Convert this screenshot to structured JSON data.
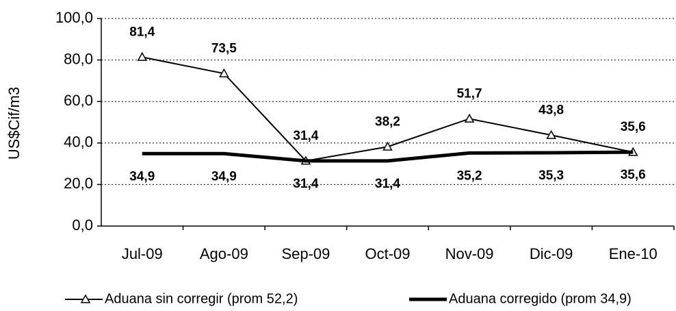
{
  "chart_data": {
    "type": "line",
    "y_label": "US$Cif/m3",
    "categories": [
      "Jul-09",
      "Ago-09",
      "Sep-09",
      "Oct-09",
      "Nov-09",
      "Dic-09",
      "Ene-10"
    ],
    "series": [
      {
        "name": "Aduana sin corregir (prom 52,2)",
        "color": "#000000",
        "marker": "triangle",
        "values": [
          81.4,
          73.5,
          31.4,
          38.2,
          51.7,
          43.8,
          35.6
        ],
        "value_labels": [
          "81,4",
          "73,5",
          "31,4",
          "38,2",
          "51,7",
          "43,8",
          "35,6"
        ]
      },
      {
        "name": "Aduana corregido (prom 34,9)",
        "color": "#000000",
        "values": [
          34.9,
          34.9,
          31.4,
          31.4,
          35.2,
          35.3,
          35.6
        ],
        "value_labels": [
          "34,9",
          "34,9",
          "31,4",
          "31,4",
          "35,2",
          "35,3",
          "35,6"
        ]
      }
    ],
    "ylim": [
      0,
      100
    ],
    "yticks": [
      {
        "value": 0,
        "label": "0,0"
      },
      {
        "value": 20,
        "label": "20,0"
      },
      {
        "value": 40,
        "label": "40,0"
      },
      {
        "value": 60,
        "label": "60,0"
      },
      {
        "value": 80,
        "label": "80,0"
      },
      {
        "value": 100,
        "label": "100,0"
      }
    ],
    "grid": true,
    "legend": "bottom"
  }
}
